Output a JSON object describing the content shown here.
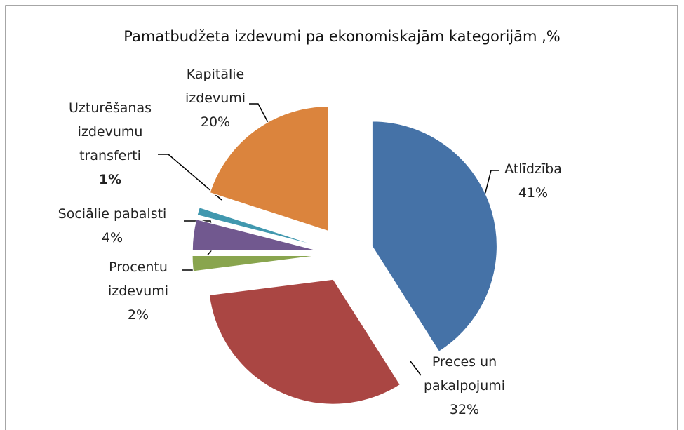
{
  "chart_data": {
    "type": "pie",
    "title": "Pamatbudžeta izdevumi pa ekonomiskajām kategorijām ,%",
    "categories": [
      "Atlīdzība",
      "Preces un pakalpojumi",
      "Procentu izdevumi",
      "Sociālie pabalsti",
      "Uzturēšanas izdevumu transferti",
      "Kapitālie izdevumi"
    ],
    "values": [
      41,
      32,
      2,
      4,
      1,
      20
    ],
    "value_labels": [
      "41%",
      "32%",
      "2%",
      "4%",
      "1%",
      "20%"
    ],
    "colors": [
      "#4572a7",
      "#aa4643",
      "#89a54e",
      "#71588f",
      "#4198af",
      "#db843d"
    ]
  }
}
